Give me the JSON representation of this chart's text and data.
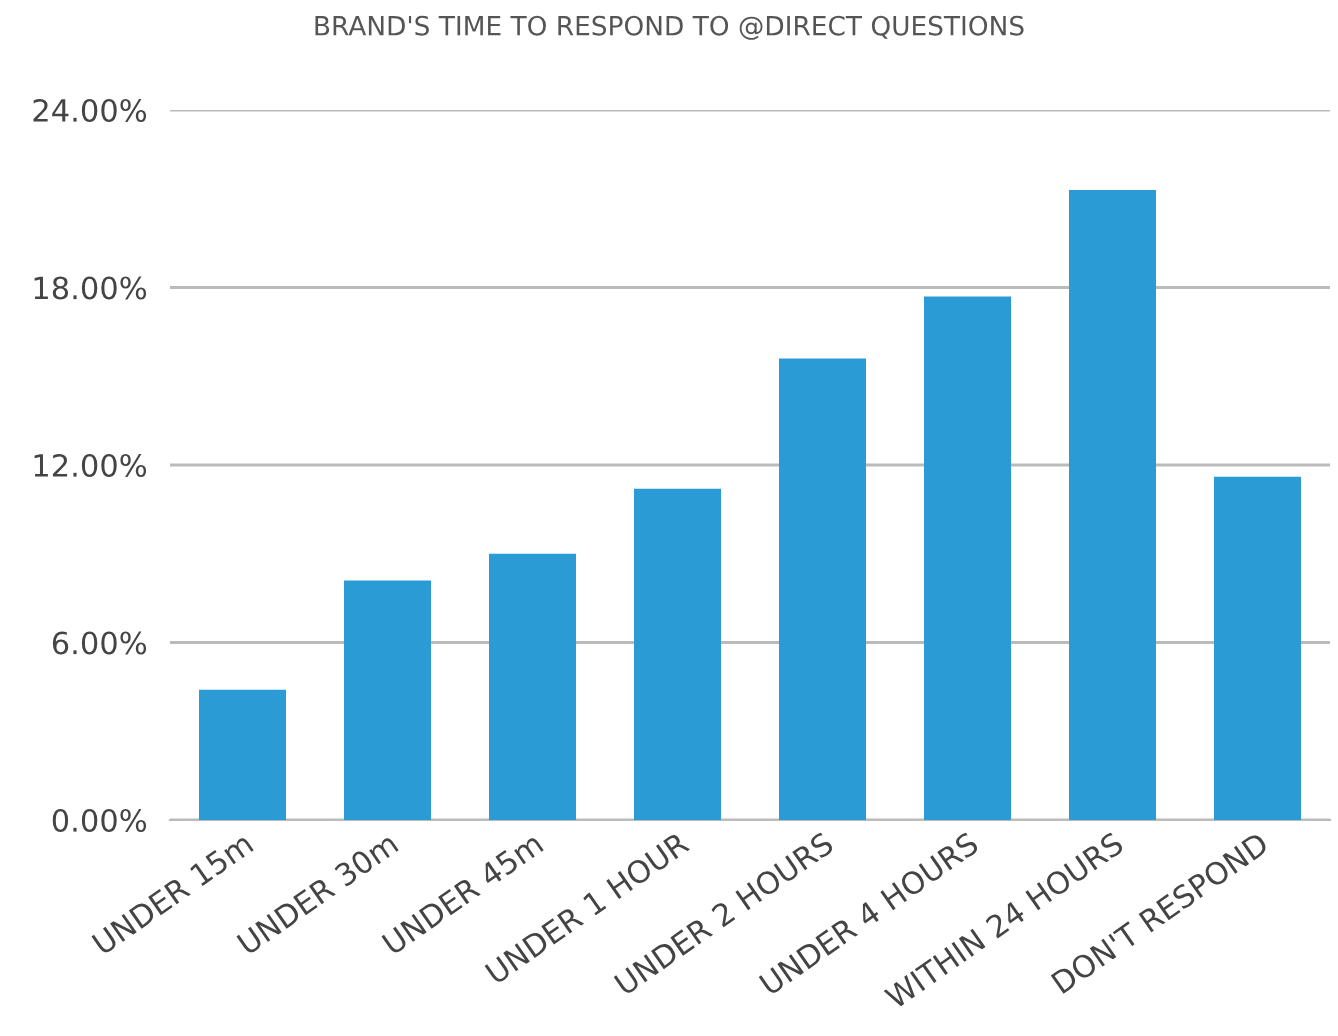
{
  "chart_data": {
    "type": "bar",
    "title": "BRAND'S TIME TO RESPOND TO @DIRECT QUESTIONS",
    "categories": [
      "UNDER 15m",
      "UNDER 30m",
      "UNDER 45m",
      "UNDER 1 HOUR",
      "UNDER 2 HOURS",
      "UNDER 4 HOURS",
      "WITHIN 24 HOURS",
      "DON'T RESPOND"
    ],
    "values": [
      4.4,
      8.1,
      9.0,
      11.2,
      15.6,
      17.7,
      21.3,
      11.6
    ],
    "color": "#2b9bd6",
    "ylim": [
      0,
      24
    ],
    "yticks": [
      {
        "value": 0,
        "label": "0.00%"
      },
      {
        "value": 6,
        "label": "6.00%"
      },
      {
        "value": 12,
        "label": "12.00%"
      },
      {
        "value": 18,
        "label": "18.00%"
      },
      {
        "value": 24,
        "label": "24.00%"
      }
    ],
    "grid": "y"
  }
}
